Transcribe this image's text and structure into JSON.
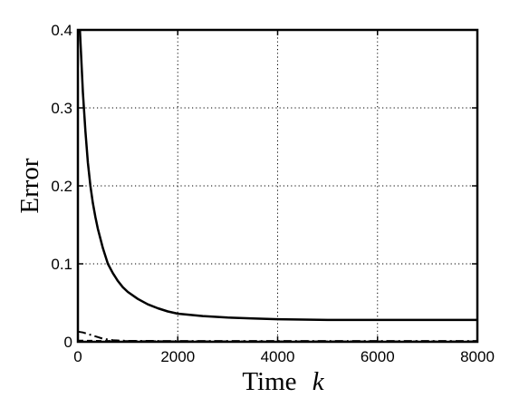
{
  "chart_data": {
    "type": "line",
    "title": "",
    "xlabel": "Time",
    "xlabel_var": "k",
    "ylabel": "Error",
    "xlim": [
      0,
      8000
    ],
    "ylim": [
      0,
      0.4
    ],
    "xticks": [
      0,
      2000,
      4000,
      6000,
      8000
    ],
    "xtick_labels": [
      "0",
      "2000",
      "4000",
      "6000",
      "8000"
    ],
    "yticks": [
      0,
      0.1,
      0.2,
      0.3,
      0.4
    ],
    "ytick_labels": [
      "0",
      "0.1",
      "0.2",
      "0.3",
      "0.4"
    ],
    "grid": true,
    "legend": "none",
    "series": [
      {
        "style": "solid",
        "color": "#000000",
        "x": [
          40,
          100,
          150,
          200,
          250,
          300,
          350,
          400,
          500,
          600,
          700,
          800,
          900,
          1000,
          1200,
          1400,
          1600,
          1800,
          2000,
          2500,
          3000,
          3500,
          4000,
          5000,
          6000,
          7000,
          8000
        ],
        "y": [
          0.4,
          0.32,
          0.27,
          0.23,
          0.2,
          0.178,
          0.16,
          0.145,
          0.12,
          0.1,
          0.088,
          0.078,
          0.07,
          0.064,
          0.055,
          0.048,
          0.043,
          0.039,
          0.036,
          0.033,
          0.031,
          0.03,
          0.029,
          0.028,
          0.028,
          0.028,
          0.028
        ]
      },
      {
        "style": "dash-dot",
        "color": "#000000",
        "x": [
          0,
          100,
          200,
          300,
          400,
          500,
          700,
          1000,
          2000,
          4000,
          6000,
          8000
        ],
        "y": [
          0.013,
          0.012,
          0.01,
          0.008,
          0.006,
          0.004,
          0.002,
          0.0012,
          0.001,
          0.001,
          0.001,
          0.001
        ]
      },
      {
        "style": "dashed",
        "color": "#000000",
        "x": [
          0,
          500,
          1000,
          2000,
          4000,
          6000,
          8000
        ],
        "y": [
          0.0015,
          0.001,
          0.0008,
          0.0006,
          0.0005,
          0.0005,
          0.0005
        ]
      }
    ]
  }
}
